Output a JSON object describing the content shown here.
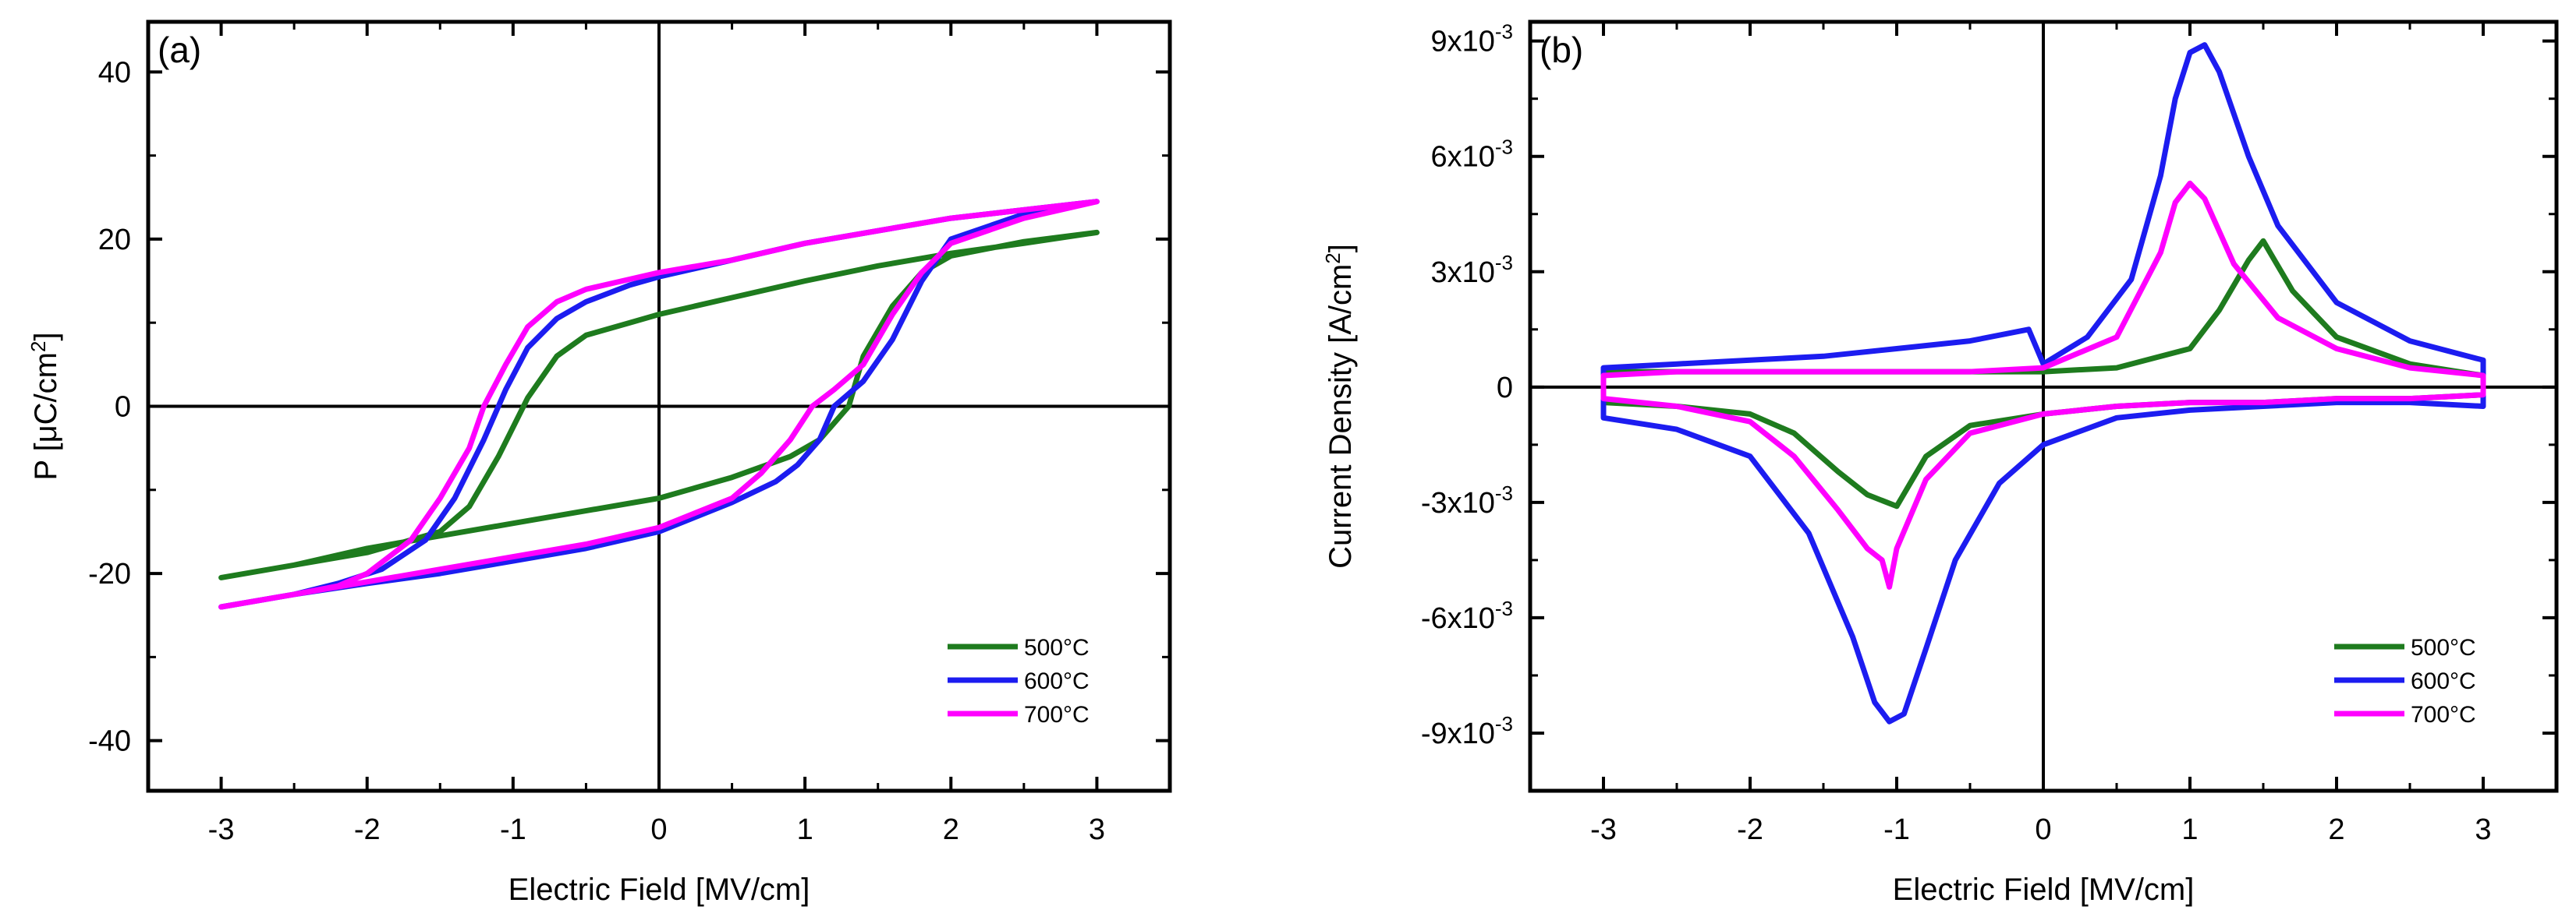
{
  "chart_data": [
    {
      "type": "line",
      "panel_label": "(a)",
      "xlabel": "Electric Field [MV/cm]",
      "ylabel_prefix": "P [",
      "ylabel_mu": "μ",
      "ylabel_unit": "C/cm",
      "ylabel_sup": "2",
      "ylabel_suffix": "]",
      "xlim": [
        -3.5,
        3.5
      ],
      "ylim": [
        -46,
        46
      ],
      "xticks": [
        -3,
        -2,
        -1,
        0,
        1,
        2,
        3
      ],
      "xtick_labels": [
        "-3",
        "-2",
        "-1",
        "0",
        "1",
        "2",
        "3"
      ],
      "yticks": [
        -40,
        -20,
        0,
        20,
        40
      ],
      "ytick_labels": [
        "-40",
        "-20",
        "0",
        "20",
        "40"
      ],
      "legend": "bottom-right",
      "series": [
        {
          "name": "500°C",
          "color": "#1e7b1e",
          "x": [
            -3,
            -2.5,
            -2,
            -1.5,
            -1.3,
            -1.1,
            -0.9,
            -0.7,
            -0.5,
            -0.2,
            0,
            0.5,
            1,
            1.5,
            2,
            2.5,
            3,
            2.5,
            2,
            1.8,
            1.6,
            1.4,
            1.3,
            1.1,
            0.9,
            0.5,
            0,
            -0.5,
            -1,
            -1.5,
            -2,
            -2.5,
            -3
          ],
          "y": [
            -20.5,
            -19,
            -17.5,
            -15,
            -12,
            -6,
            1,
            6,
            8.5,
            10,
            11,
            13,
            15,
            16.8,
            18.3,
            19.5,
            20.8,
            19.7,
            18,
            16,
            12,
            6,
            0,
            -4,
            -6,
            -8.5,
            -11,
            -12.5,
            -14,
            -15.5,
            -17,
            -19,
            -20.5
          ]
        },
        {
          "name": "600°C",
          "color": "#1c1cf0",
          "x": [
            -3,
            -2.5,
            -2.2,
            -1.9,
            -1.6,
            -1.4,
            -1.2,
            -1.05,
            -0.9,
            -0.7,
            -0.5,
            -0.2,
            0,
            0.5,
            1,
            1.5,
            2,
            2.5,
            3,
            2.5,
            2,
            1.8,
            1.6,
            1.4,
            1.2,
            1.1,
            0.95,
            0.8,
            0.5,
            0,
            -0.5,
            -1,
            -1.5,
            -2,
            -2.5,
            -3
          ],
          "y": [
            -24,
            -22.5,
            -21.2,
            -19.5,
            -16,
            -11,
            -4,
            2,
            7,
            10.5,
            12.5,
            14.5,
            15.5,
            17.5,
            19.5,
            21,
            22.5,
            23.5,
            24.5,
            23,
            20,
            15,
            8,
            3,
            0,
            -4,
            -7,
            -9,
            -11.5,
            -15,
            -17,
            -18.5,
            -20,
            -21.2,
            -22.5,
            -24
          ]
        },
        {
          "name": "700°C",
          "color": "#ff00ff",
          "x": [
            -3,
            -2.5,
            -2.2,
            -2,
            -1.7,
            -1.5,
            -1.3,
            -1.2,
            -1.05,
            -0.9,
            -0.7,
            -0.5,
            -0.2,
            0,
            0.5,
            1,
            1.5,
            2,
            2.5,
            3,
            2.5,
            2,
            1.8,
            1.6,
            1.4,
            1.2,
            1.05,
            0.9,
            0.7,
            0.5,
            0,
            -0.5,
            -1,
            -1.5,
            -2,
            -2.5,
            -3
          ],
          "y": [
            -24,
            -22.5,
            -21.5,
            -20,
            -16,
            -11,
            -5,
            0,
            5,
            9.5,
            12.5,
            14,
            15.2,
            16,
            17.5,
            19.5,
            21,
            22.5,
            23.5,
            24.5,
            22.5,
            19.5,
            16,
            11,
            5,
            2,
            0,
            -4,
            -8,
            -11,
            -14.5,
            -16.5,
            -18,
            -19.5,
            -21,
            -22.5,
            -24
          ]
        }
      ]
    },
    {
      "type": "line",
      "panel_label": "(b)",
      "xlabel": "Electric Field [MV/cm]",
      "ylabel_main": "Current Density [A/cm",
      "ylabel_sup": "2",
      "ylabel_suffix": "]",
      "xlim": [
        -3.5,
        3.5
      ],
      "ylim": [
        -0.0105,
        0.0095
      ],
      "xticks": [
        -3,
        -2,
        -1,
        0,
        1,
        2,
        3
      ],
      "xtick_labels": [
        "-3",
        "-2",
        "-1",
        "0",
        "1",
        "2",
        "3"
      ],
      "yticks": [
        -0.009,
        -0.006,
        -0.003,
        0,
        0.003,
        0.006,
        0.009
      ],
      "ytick_mantissas": [
        "-9",
        "-6",
        "-3",
        "0",
        "3",
        "6",
        "9"
      ],
      "ytick_base": "x10",
      "ytick_exp": "-3",
      "legend": "bottom-right",
      "series": [
        {
          "name": "500°C",
          "color": "#1e7b1e",
          "x": [
            -3,
            -2.5,
            -2,
            -1.5,
            -1,
            -0.5,
            0,
            0.5,
            1,
            1.2,
            1.4,
            1.5,
            1.7,
            2,
            2.5,
            3,
            3,
            2.5,
            2,
            1.5,
            1,
            0.5,
            0,
            -0.5,
            -0.8,
            -1,
            -1.2,
            -1.4,
            -1.7,
            -2,
            -2.5,
            -3,
            -3
          ],
          "y": [
            0.0004,
            0.0004,
            0.0004,
            0.0004,
            0.0004,
            0.0004,
            0.0004,
            0.0005,
            0.001,
            0.002,
            0.0033,
            0.0038,
            0.0025,
            0.0013,
            0.0006,
            0.0003,
            -0.0002,
            -0.0003,
            -0.0003,
            -0.0004,
            -0.0004,
            -0.0005,
            -0.0007,
            -0.001,
            -0.0018,
            -0.0031,
            -0.0028,
            -0.0022,
            -0.0012,
            -0.0007,
            -0.0005,
            -0.0004,
            0.0004
          ]
        },
        {
          "name": "600°C",
          "color": "#1c1cf0",
          "x": [
            -3,
            -2.5,
            -2,
            -1.5,
            -1,
            -0.5,
            -0.1,
            0,
            0.3,
            0.6,
            0.8,
            0.9,
            1,
            1.1,
            1.2,
            1.4,
            1.6,
            2,
            2.5,
            3,
            3,
            2.5,
            2,
            1.5,
            1,
            0.5,
            0,
            -0.3,
            -0.6,
            -0.8,
            -0.95,
            -1.05,
            -1.15,
            -1.3,
            -1.6,
            -2,
            -2.5,
            -3,
            -3
          ],
          "y": [
            0.0005,
            0.0006,
            0.0007,
            0.0008,
            0.001,
            0.0012,
            0.0015,
            0.0006,
            0.0013,
            0.0028,
            0.0055,
            0.0075,
            0.0087,
            0.0089,
            0.0082,
            0.006,
            0.0042,
            0.0022,
            0.0012,
            0.0007,
            -0.0005,
            -0.0004,
            -0.0004,
            -0.0005,
            -0.0006,
            -0.0008,
            -0.0015,
            -0.0025,
            -0.0045,
            -0.0068,
            -0.0085,
            -0.0087,
            -0.0082,
            -0.0065,
            -0.0038,
            -0.0018,
            -0.0011,
            -0.0008,
            0.0005
          ]
        },
        {
          "name": "700°C",
          "color": "#ff00ff",
          "x": [
            -3,
            -2.5,
            -2,
            -1.5,
            -1,
            -0.5,
            0,
            0.5,
            0.8,
            0.9,
            1,
            1.1,
            1.3,
            1.6,
            2,
            2.5,
            3,
            3,
            2.5,
            2,
            1.5,
            1,
            0.5,
            0,
            -0.5,
            -0.8,
            -1,
            -1.05,
            -1.1,
            -1.2,
            -1.4,
            -1.7,
            -2,
            -2.5,
            -3,
            -3
          ],
          "y": [
            0.0003,
            0.0004,
            0.0004,
            0.0004,
            0.0004,
            0.0004,
            0.0005,
            0.0013,
            0.0035,
            0.0048,
            0.0053,
            0.0049,
            0.0032,
            0.0018,
            0.001,
            0.0005,
            0.0003,
            -0.0002,
            -0.0003,
            -0.0003,
            -0.0004,
            -0.0004,
            -0.0005,
            -0.0007,
            -0.0012,
            -0.0024,
            -0.0042,
            -0.0052,
            -0.0045,
            -0.0042,
            -0.0032,
            -0.0018,
            -0.0009,
            -0.0005,
            -0.0003,
            0.0003
          ]
        }
      ]
    }
  ]
}
